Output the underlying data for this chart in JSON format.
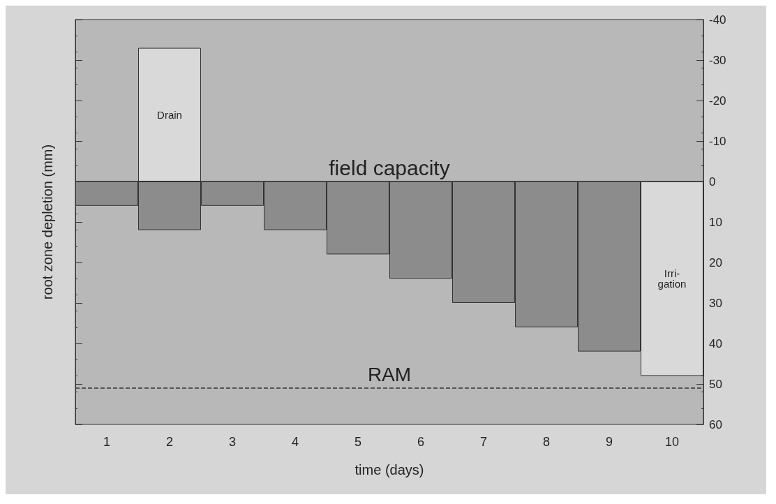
{
  "chart_data": {
    "type": "bar",
    "xlabel": "time (days)",
    "ylabel": "root zone depletion (mm)",
    "categories": [
      "1",
      "2",
      "3",
      "4",
      "5",
      "6",
      "7",
      "8",
      "9",
      "10"
    ],
    "series": [
      {
        "color": "#8c8c8c",
        "values": [
          6,
          12,
          6,
          12,
          18,
          24,
          30,
          36,
          42,
          null
        ]
      },
      {
        "color": "#d9d9d9",
        "values": [
          null,
          -33,
          null,
          null,
          null,
          null,
          null,
          null,
          null,
          48
        ],
        "value_labels": [
          null,
          "Drain",
          null,
          null,
          null,
          null,
          null,
          null,
          null,
          "Irri-\ngation"
        ]
      }
    ],
    "ylim": [
      60,
      -40
    ],
    "yticks": [
      -40,
      -30,
      -20,
      -10,
      0,
      10,
      20,
      30,
      40,
      50,
      60
    ],
    "ref_lines": [
      {
        "axis": "y",
        "value": 0,
        "label": "field capacity",
        "color": "#333333",
        "line_style": "solid"
      },
      {
        "axis": "y",
        "value": 51,
        "label": "RAM",
        "color": "#333333",
        "line_style": "dashed"
      }
    ],
    "grid": false
  }
}
